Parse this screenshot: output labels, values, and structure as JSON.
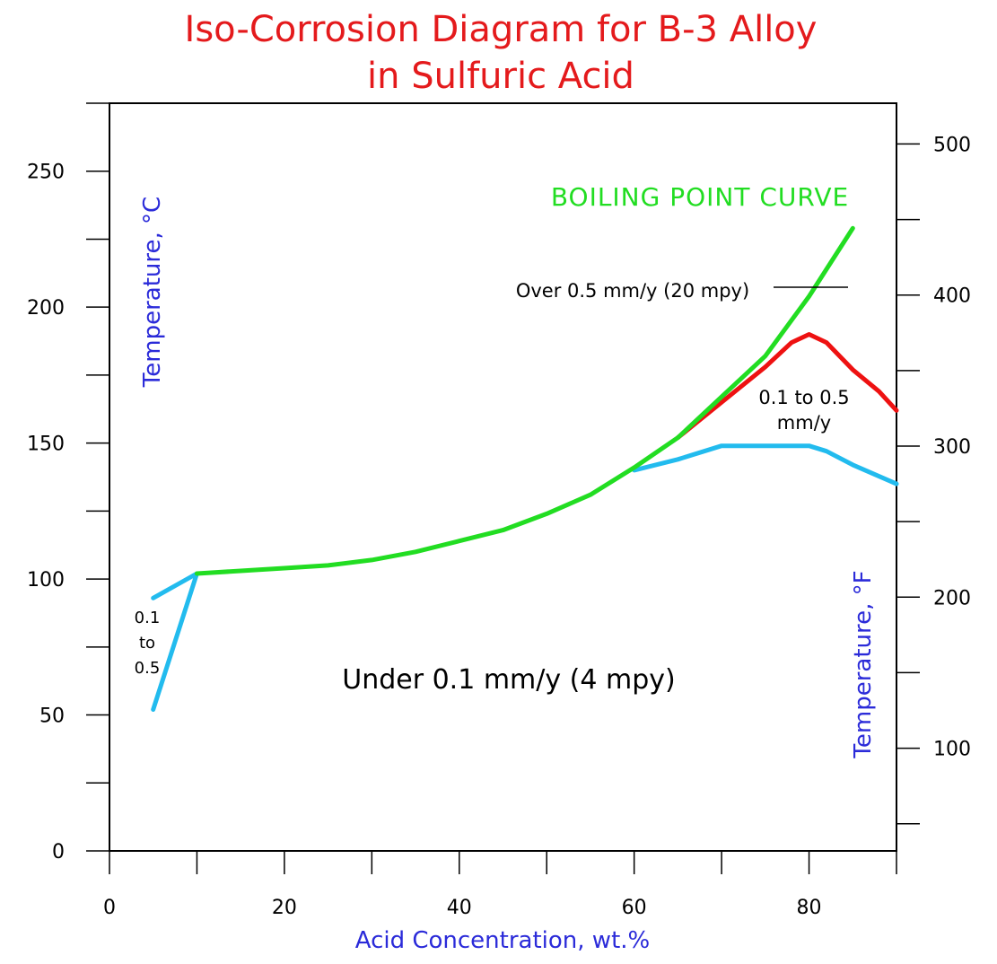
{
  "chart_data": {
    "type": "line",
    "title": "Iso-Corrosion Diagram for B-3 Alloy",
    "subtitle": "in Sulfuric Acid",
    "xlabel": "Acid Concentration, wt.%",
    "ylabel": "Temperature, °C",
    "ylabel_right": "Temperature, °F",
    "xlim": [
      0,
      90
    ],
    "ylim": [
      0,
      275
    ],
    "ylim_right": [
      32,
      527
    ],
    "x_ticks": [
      0,
      20,
      40,
      60,
      80
    ],
    "y_ticks": [
      0,
      50,
      100,
      150,
      200,
      250
    ],
    "y_ticks_right": [
      100,
      200,
      300,
      400,
      500
    ],
    "x_minor_step": 10,
    "y_minor_step": 25,
    "y_right_minor_step": 50,
    "grid": false,
    "series": [
      {
        "color": "#ee1111",
        "points": [
          [
            65,
            152
          ],
          [
            70,
            165
          ],
          [
            75,
            178
          ],
          [
            78,
            187
          ],
          [
            80,
            190
          ],
          [
            82,
            187
          ],
          [
            85,
            177
          ],
          [
            88,
            169
          ],
          [
            90,
            162
          ]
        ]
      },
      {
        "color": "#22dd22",
        "points": [
          [
            10,
            102
          ],
          [
            15,
            103
          ],
          [
            20,
            104
          ],
          [
            25,
            105
          ],
          [
            30,
            107
          ],
          [
            35,
            110
          ],
          [
            40,
            114
          ],
          [
            45,
            118
          ],
          [
            50,
            124
          ],
          [
            55,
            131
          ],
          [
            60,
            141
          ],
          [
            65,
            152
          ],
          [
            70,
            167
          ],
          [
            75,
            182
          ],
          [
            80,
            204
          ],
          [
            85,
            229
          ]
        ]
      },
      {
        "color": "#22bbee",
        "points": [
          [
            5,
            52
          ],
          [
            10,
            102
          ],
          [
            5,
            93
          ]
        ]
      },
      {
        "color": "#22bbee",
        "points": [
          [
            60,
            140
          ],
          [
            65,
            144
          ],
          [
            70,
            149
          ],
          [
            75,
            149
          ],
          [
            78,
            149
          ],
          [
            80,
            149
          ],
          [
            82,
            147
          ],
          [
            85,
            142
          ],
          [
            90,
            135
          ]
        ]
      }
    ],
    "annotations": [
      "BOILING POINT CURVE",
      "Over 0.5 mm/y (20 mpy)",
      "0.1 to 0.5",
      "mm/y",
      "0.1",
      "to",
      "0.5",
      "Under 0.1 mm/y (4 mpy)"
    ]
  }
}
